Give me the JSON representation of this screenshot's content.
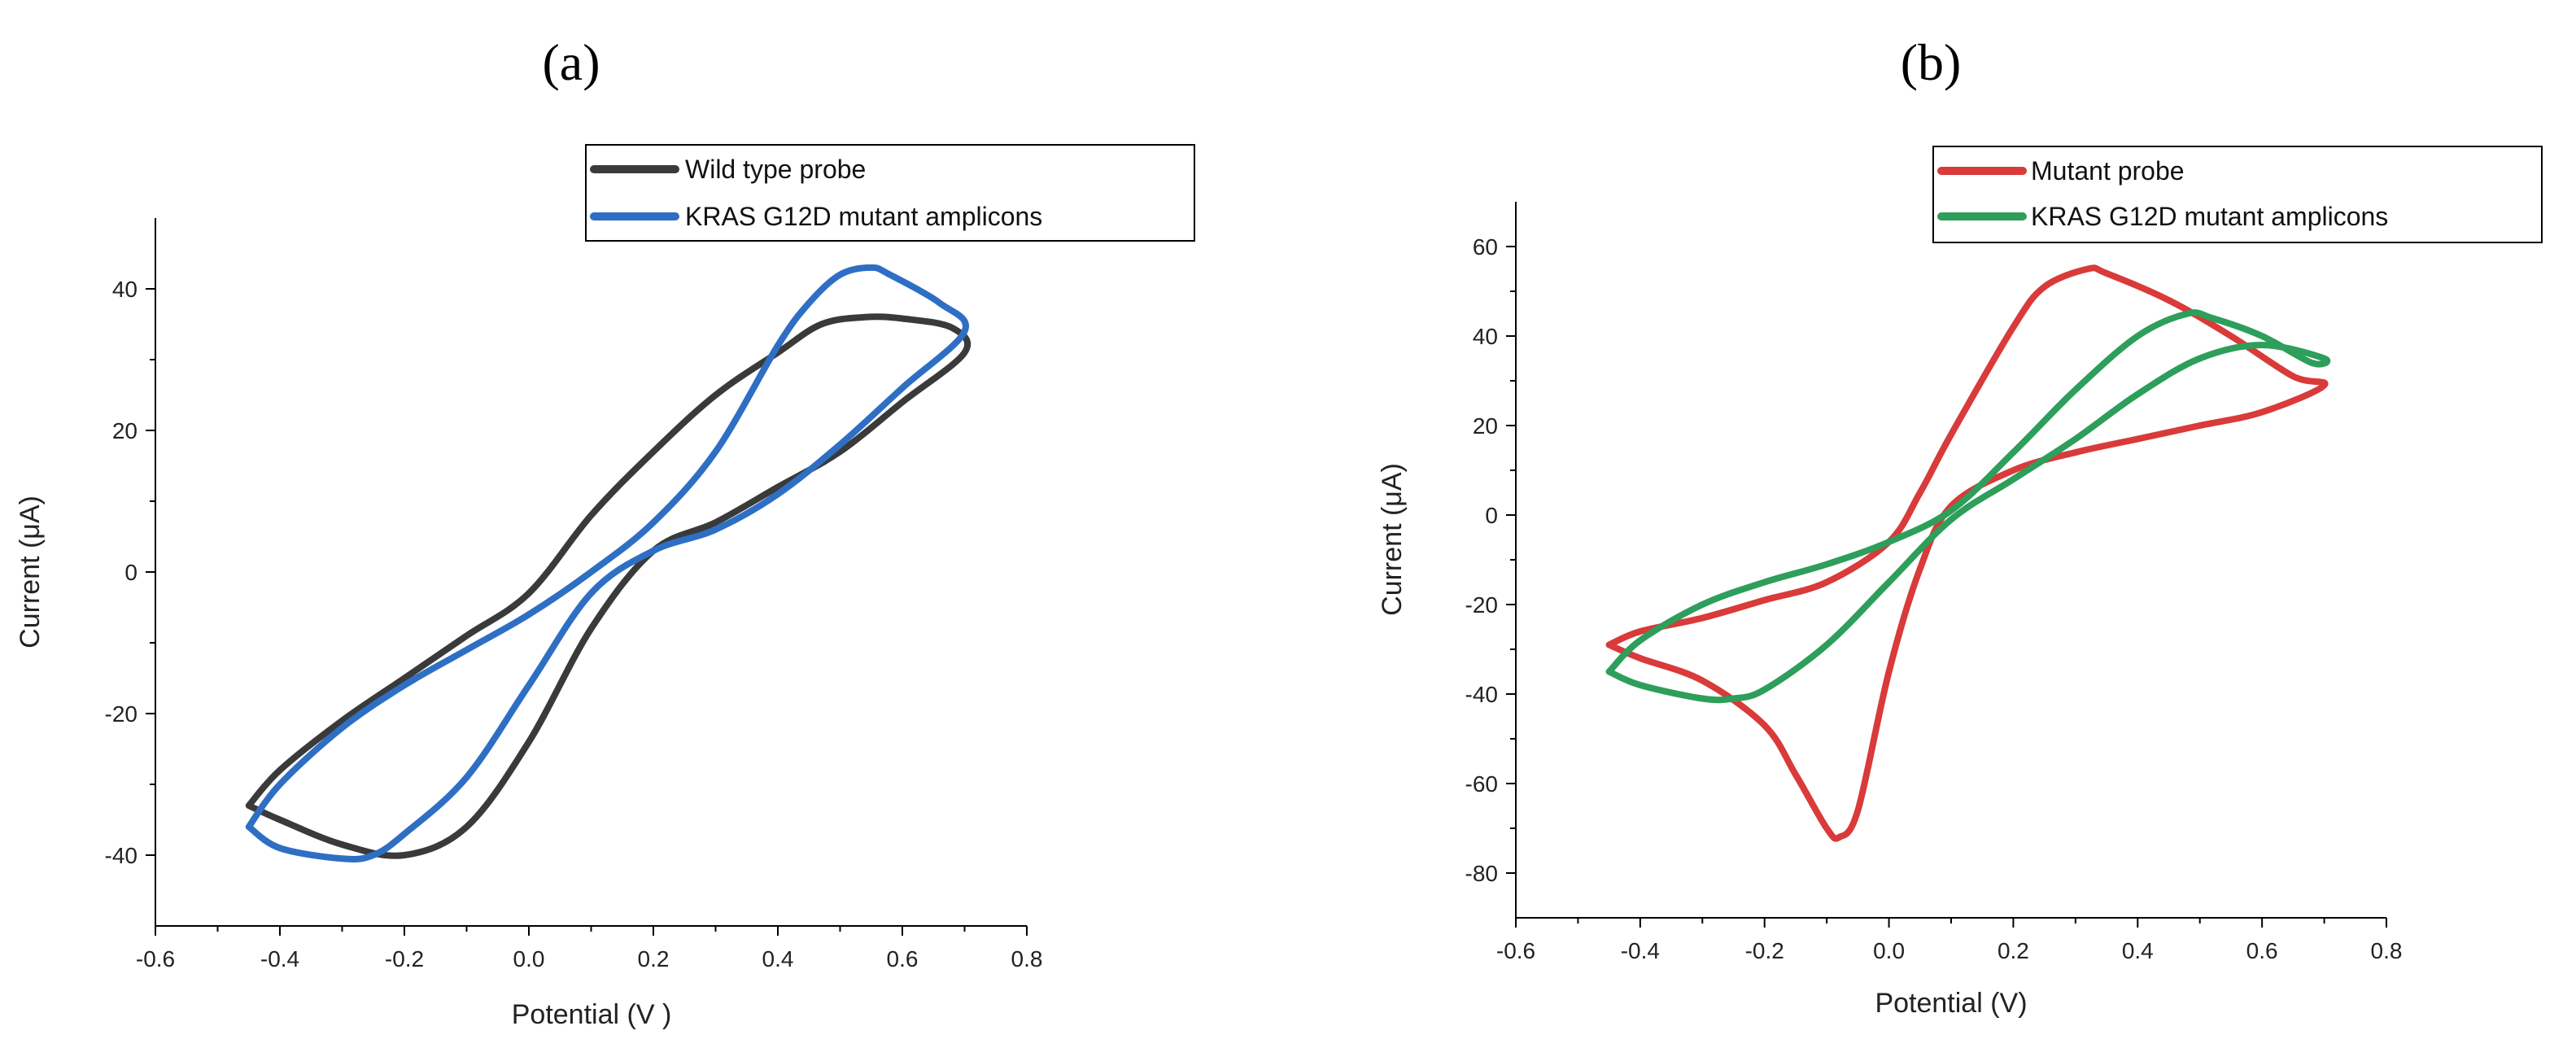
{
  "chart_data": [
    {
      "type": "line",
      "panel_label": "(a)",
      "xlabel": "Potential (V )",
      "ylabel": "Current (μA)",
      "xlim": [
        -0.6,
        0.8
      ],
      "ylim": [
        -50,
        50
      ],
      "xticks": [
        -0.6,
        -0.4,
        -0.2,
        0.0,
        0.2,
        0.4,
        0.6,
        0.8
      ],
      "xtick_labels": [
        "-0.6",
        "-0.4",
        "-0.2",
        "0.0",
        "0.2",
        "0.4",
        "0.6",
        "0.8"
      ],
      "yticks": [
        -40,
        -20,
        0,
        20,
        40
      ],
      "ytick_labels": [
        "-40",
        "-20",
        "0",
        "20",
        "40"
      ],
      "legend_position": "top-right",
      "series": [
        {
          "name": "Wild type probe",
          "color": "#3a3a3a",
          "x": [
            -0.45,
            -0.4,
            -0.3,
            -0.2,
            -0.1,
            0.0,
            0.1,
            0.2,
            0.3,
            0.4,
            0.5,
            0.6,
            0.7,
            0.68,
            0.6,
            0.54,
            0.47,
            0.4,
            0.3,
            0.2,
            0.1,
            0.0,
            -0.1,
            -0.2,
            -0.3,
            -0.4,
            -0.45
          ],
          "y": [
            -33,
            -35,
            -38.5,
            -40,
            -36,
            -24,
            -8,
            3,
            7,
            12,
            17,
            24,
            31,
            34.5,
            35.8,
            36,
            35,
            31,
            25,
            17,
            8,
            -3,
            -9,
            -15,
            -21,
            -28,
            -33
          ]
        },
        {
          "name": "KRAS G12D mutant amplicons",
          "color": "#2e6fc4",
          "x": [
            -0.45,
            -0.4,
            -0.3,
            -0.25,
            -0.2,
            -0.1,
            0.0,
            0.1,
            0.2,
            0.3,
            0.4,
            0.5,
            0.6,
            0.7,
            0.66,
            0.58,
            0.55,
            0.5,
            0.45,
            0.4,
            0.3,
            0.2,
            0.1,
            0.0,
            -0.1,
            -0.2,
            -0.3,
            -0.4,
            -0.45
          ],
          "y": [
            -36,
            -39,
            -40.5,
            -40,
            -37,
            -29,
            -16,
            -3,
            3,
            6,
            11,
            18,
            26,
            34,
            38,
            42,
            43,
            42,
            38,
            32,
            17,
            7,
            0,
            -6,
            -11,
            -16,
            -22,
            -30,
            -36
          ]
        }
      ]
    },
    {
      "type": "line",
      "panel_label": "(b)",
      "xlabel": "Potential (V)",
      "ylabel": "Current (μA)",
      "xlim": [
        -0.6,
        0.8
      ],
      "ylim": [
        -90,
        70
      ],
      "xticks": [
        -0.6,
        -0.4,
        -0.2,
        0.0,
        0.2,
        0.4,
        0.6,
        0.8
      ],
      "xtick_labels": [
        "-0.6",
        "-0.4",
        "-0.2",
        "0.0",
        "0.2",
        "0.4",
        "0.6",
        "0.8"
      ],
      "yticks": [
        -80,
        -60,
        -40,
        -20,
        0,
        20,
        40,
        60
      ],
      "ytick_labels": [
        "-80",
        "-60",
        "-40",
        "-20",
        "0",
        "20",
        "40",
        "60"
      ],
      "legend_position": "top-right",
      "series": [
        {
          "name": "Mutant probe",
          "color": "#d93a3a",
          "x": [
            -0.45,
            -0.4,
            -0.3,
            -0.2,
            -0.15,
            -0.1,
            -0.08,
            -0.05,
            0.0,
            0.05,
            0.1,
            0.2,
            0.3,
            0.4,
            0.5,
            0.6,
            0.7,
            0.65,
            0.55,
            0.45,
            0.35,
            0.32,
            0.25,
            0.2,
            0.1,
            0.05,
            0.0,
            -0.1,
            -0.2,
            -0.3,
            -0.4,
            -0.45
          ],
          "y": [
            -29,
            -32,
            -37,
            -47,
            -58,
            -70,
            -72,
            -66,
            -35,
            -12,
            2,
            10,
            14,
            17,
            20,
            23,
            29,
            31,
            40,
            48,
            54,
            55,
            51,
            42,
            18,
            5,
            -6,
            -15,
            -19,
            -23,
            -26,
            -29
          ]
        },
        {
          "name": "KRAS G12D mutant amplicons",
          "color": "#2e9e5b",
          "x": [
            -0.45,
            -0.4,
            -0.3,
            -0.25,
            -0.2,
            -0.1,
            0.0,
            0.1,
            0.2,
            0.3,
            0.4,
            0.5,
            0.6,
            0.7,
            0.68,
            0.6,
            0.52,
            0.48,
            0.4,
            0.3,
            0.2,
            0.1,
            0.0,
            -0.1,
            -0.2,
            -0.3,
            -0.4,
            -0.45
          ],
          "y": [
            -35,
            -38,
            -41,
            -41,
            -39,
            -29,
            -15,
            -1,
            8,
            17,
            27,
            35,
            38,
            35,
            34,
            40,
            44,
            45,
            40,
            28,
            14,
            1,
            -6,
            -11,
            -15,
            -20,
            -28,
            -35
          ]
        }
      ]
    }
  ]
}
